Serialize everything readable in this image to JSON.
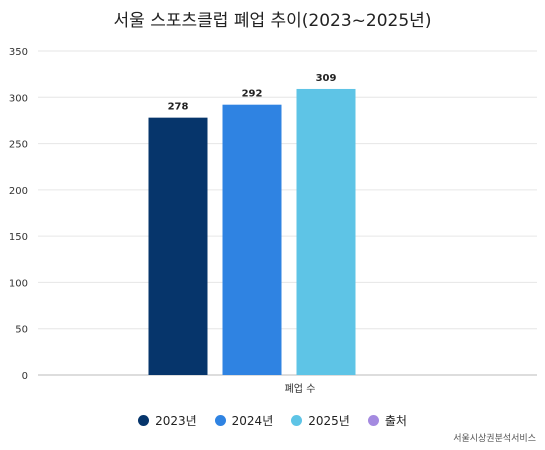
{
  "chart_data": {
    "type": "bar",
    "title": "서울 스포츠클럽 폐업 추이(2023~2025년)",
    "xlabel": "폐업 수",
    "ylabel": "",
    "categories": [
      "폐업 수"
    ],
    "series": [
      {
        "name": "2023년",
        "values": [
          278
        ],
        "color": "#06356b"
      },
      {
        "name": "2024년",
        "values": [
          292
        ],
        "color": "#2f83e2"
      },
      {
        "name": "2025년",
        "values": [
          309
        ],
        "color": "#5ec4e6"
      }
    ],
    "ylim": [
      0,
      350
    ],
    "yticks": [
      0,
      50,
      100,
      150,
      200,
      250,
      300,
      350
    ],
    "grid": true,
    "legend_position": "bottom"
  },
  "legend": [
    {
      "label": "2023년",
      "color": "#06356b"
    },
    {
      "label": "2024년",
      "color": "#2f83e2"
    },
    {
      "label": "2025년",
      "color": "#5ec4e6"
    },
    {
      "label": "출처",
      "color": "#a48ae0"
    }
  ],
  "source_text": "서울시상권분석서비스"
}
